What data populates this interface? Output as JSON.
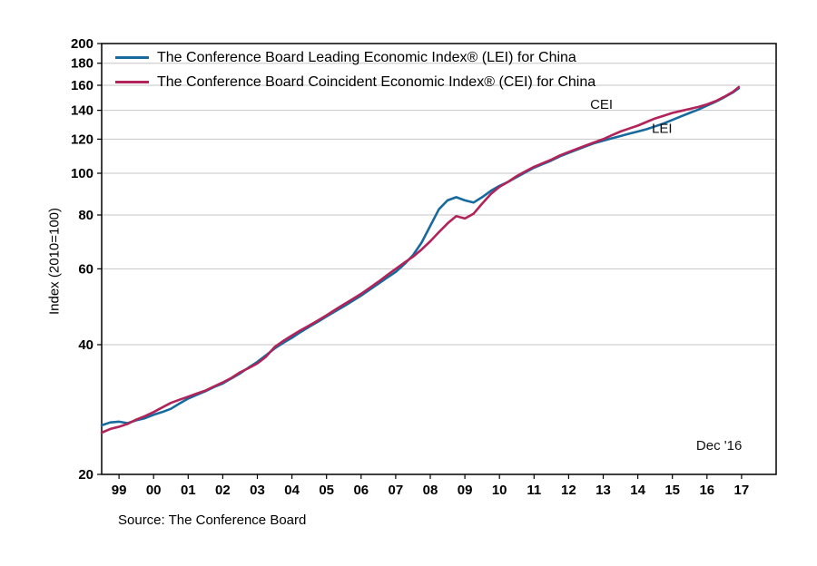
{
  "chart_data": {
    "type": "line",
    "title": "",
    "ylabel": "Index (2010=100)",
    "source_note": "Source: The Conference Board",
    "y_scale": "log",
    "ylim": [
      20,
      200
    ],
    "yticks": [
      20,
      40,
      60,
      80,
      100,
      120,
      140,
      160,
      180,
      200
    ],
    "xlim": [
      1998.5,
      2018.0
    ],
    "xticks": [
      1999,
      2000,
      2001,
      2002,
      2003,
      2004,
      2005,
      2006,
      2007,
      2008,
      2009,
      2010,
      2011,
      2012,
      2013,
      2014,
      2015,
      2016,
      2017
    ],
    "xtick_labels": [
      "99",
      "00",
      "01",
      "02",
      "03",
      "04",
      "05",
      "06",
      "07",
      "08",
      "09",
      "10",
      "11",
      "12",
      "13",
      "14",
      "15",
      "16",
      "17"
    ],
    "grid": true,
    "legend_position": "inside-top-left",
    "x": [
      1998.5,
      1998.75,
      1999,
      1999.25,
      1999.5,
      1999.75,
      2000,
      2000.25,
      2000.5,
      2000.75,
      2001,
      2001.25,
      2001.5,
      2001.75,
      2002,
      2002.25,
      2002.5,
      2002.75,
      2003,
      2003.25,
      2003.5,
      2003.75,
      2004,
      2004.25,
      2004.5,
      2004.75,
      2005,
      2005.25,
      2005.5,
      2005.75,
      2006,
      2006.25,
      2006.5,
      2006.75,
      2007,
      2007.25,
      2007.5,
      2007.75,
      2008,
      2008.25,
      2008.5,
      2008.75,
      2009,
      2009.25,
      2009.5,
      2009.75,
      2010,
      2010.25,
      2010.5,
      2010.75,
      2011,
      2011.25,
      2011.5,
      2011.75,
      2012,
      2012.25,
      2012.5,
      2012.75,
      2013,
      2013.25,
      2013.5,
      2013.75,
      2014,
      2014.25,
      2014.5,
      2014.75,
      2015,
      2015.25,
      2015.5,
      2015.75,
      2016,
      2016.25,
      2016.5,
      2016.75,
      2016.92
    ],
    "series": [
      {
        "name": "The Conference Board Leading Economic Index® (LEI) for China",
        "short_label": "LEI",
        "color": "#176a9d",
        "values": [
          26.0,
          26.4,
          26.5,
          26.3,
          26.7,
          27.0,
          27.5,
          27.9,
          28.4,
          29.2,
          30.0,
          30.6,
          31.2,
          31.9,
          32.5,
          33.4,
          34.3,
          35.4,
          36.5,
          37.8,
          39.2,
          40.4,
          41.5,
          42.8,
          44.0,
          45.2,
          46.5,
          47.8,
          49.1,
          50.5,
          52.0,
          53.7,
          55.4,
          57.2,
          59.0,
          61.5,
          64.5,
          69.0,
          75.5,
          82.5,
          86.5,
          88.0,
          86.5,
          85.5,
          88.0,
          91.0,
          93.5,
          95.5,
          98.0,
          100.5,
          103.0,
          105.0,
          107.0,
          109.5,
          111.5,
          113.5,
          115.5,
          117.5,
          119.0,
          120.5,
          122.0,
          123.5,
          125.0,
          126.5,
          128.5,
          130.5,
          133.0,
          135.5,
          138.0,
          140.5,
          143.5,
          146.5,
          150.0,
          154.0,
          157.5
        ]
      },
      {
        "name": "The Conference Board Coincident Economic Index® (CEI) for China",
        "short_label": "CEI",
        "color": "#b2235a",
        "values": [
          25.0,
          25.5,
          25.8,
          26.2,
          26.8,
          27.3,
          27.9,
          28.6,
          29.3,
          29.8,
          30.3,
          30.8,
          31.3,
          32.0,
          32.7,
          33.5,
          34.5,
          35.3,
          36.2,
          37.5,
          39.5,
          40.8,
          42.0,
          43.2,
          44.3,
          45.5,
          46.8,
          48.2,
          49.6,
          51.0,
          52.5,
          54.2,
          56.0,
          58.0,
          60.0,
          62.0,
          64.0,
          66.5,
          69.5,
          73.0,
          76.5,
          79.5,
          78.5,
          80.5,
          85.0,
          89.5,
          93.0,
          95.5,
          98.5,
          101.0,
          103.5,
          105.5,
          107.5,
          110.0,
          112.0,
          114.0,
          116.0,
          118.0,
          120.0,
          122.5,
          125.0,
          127.0,
          129.0,
          131.5,
          134.0,
          136.0,
          138.0,
          139.5,
          141.0,
          142.5,
          144.5,
          147.0,
          150.5,
          154.5,
          158.5
        ]
      }
    ],
    "annotations": [
      {
        "text": "CEI",
        "x": 2012.95,
        "y": 141
      },
      {
        "text": "LEI",
        "x": 2014.7,
        "y": 124
      },
      {
        "text": "Dec '16",
        "x": 2016.35,
        "y": 22.8
      }
    ]
  }
}
